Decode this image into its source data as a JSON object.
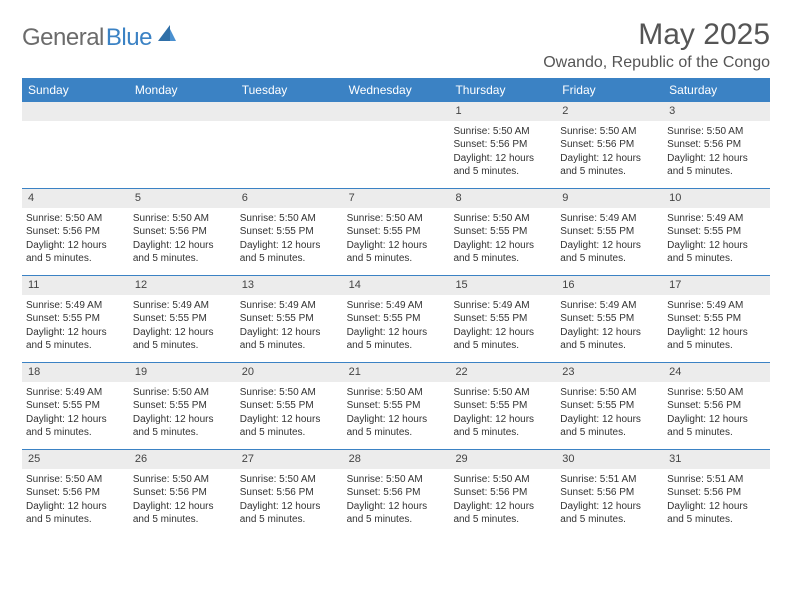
{
  "brand": {
    "part1": "General",
    "part2": "Blue"
  },
  "title": "May 2025",
  "location": "Owando, Republic of the Congo",
  "colors": {
    "header_bg": "#3b82c4",
    "daynum_bg": "#ececec",
    "text": "#333333",
    "brand_gray": "#6b6b6b",
    "brand_blue": "#3b82c4"
  },
  "day_names": [
    "Sunday",
    "Monday",
    "Tuesday",
    "Wednesday",
    "Thursday",
    "Friday",
    "Saturday"
  ],
  "weeks": [
    [
      {
        "empty": true
      },
      {
        "empty": true
      },
      {
        "empty": true
      },
      {
        "empty": true
      },
      {
        "day": "1",
        "sunrise": "Sunrise: 5:50 AM",
        "sunset": "Sunset: 5:56 PM",
        "daylight": "Daylight: 12 hours and 5 minutes."
      },
      {
        "day": "2",
        "sunrise": "Sunrise: 5:50 AM",
        "sunset": "Sunset: 5:56 PM",
        "daylight": "Daylight: 12 hours and 5 minutes."
      },
      {
        "day": "3",
        "sunrise": "Sunrise: 5:50 AM",
        "sunset": "Sunset: 5:56 PM",
        "daylight": "Daylight: 12 hours and 5 minutes."
      }
    ],
    [
      {
        "day": "4",
        "sunrise": "Sunrise: 5:50 AM",
        "sunset": "Sunset: 5:56 PM",
        "daylight": "Daylight: 12 hours and 5 minutes."
      },
      {
        "day": "5",
        "sunrise": "Sunrise: 5:50 AM",
        "sunset": "Sunset: 5:56 PM",
        "daylight": "Daylight: 12 hours and 5 minutes."
      },
      {
        "day": "6",
        "sunrise": "Sunrise: 5:50 AM",
        "sunset": "Sunset: 5:55 PM",
        "daylight": "Daylight: 12 hours and 5 minutes."
      },
      {
        "day": "7",
        "sunrise": "Sunrise: 5:50 AM",
        "sunset": "Sunset: 5:55 PM",
        "daylight": "Daylight: 12 hours and 5 minutes."
      },
      {
        "day": "8",
        "sunrise": "Sunrise: 5:50 AM",
        "sunset": "Sunset: 5:55 PM",
        "daylight": "Daylight: 12 hours and 5 minutes."
      },
      {
        "day": "9",
        "sunrise": "Sunrise: 5:49 AM",
        "sunset": "Sunset: 5:55 PM",
        "daylight": "Daylight: 12 hours and 5 minutes."
      },
      {
        "day": "10",
        "sunrise": "Sunrise: 5:49 AM",
        "sunset": "Sunset: 5:55 PM",
        "daylight": "Daylight: 12 hours and 5 minutes."
      }
    ],
    [
      {
        "day": "11",
        "sunrise": "Sunrise: 5:49 AM",
        "sunset": "Sunset: 5:55 PM",
        "daylight": "Daylight: 12 hours and 5 minutes."
      },
      {
        "day": "12",
        "sunrise": "Sunrise: 5:49 AM",
        "sunset": "Sunset: 5:55 PM",
        "daylight": "Daylight: 12 hours and 5 minutes."
      },
      {
        "day": "13",
        "sunrise": "Sunrise: 5:49 AM",
        "sunset": "Sunset: 5:55 PM",
        "daylight": "Daylight: 12 hours and 5 minutes."
      },
      {
        "day": "14",
        "sunrise": "Sunrise: 5:49 AM",
        "sunset": "Sunset: 5:55 PM",
        "daylight": "Daylight: 12 hours and 5 minutes."
      },
      {
        "day": "15",
        "sunrise": "Sunrise: 5:49 AM",
        "sunset": "Sunset: 5:55 PM",
        "daylight": "Daylight: 12 hours and 5 minutes."
      },
      {
        "day": "16",
        "sunrise": "Sunrise: 5:49 AM",
        "sunset": "Sunset: 5:55 PM",
        "daylight": "Daylight: 12 hours and 5 minutes."
      },
      {
        "day": "17",
        "sunrise": "Sunrise: 5:49 AM",
        "sunset": "Sunset: 5:55 PM",
        "daylight": "Daylight: 12 hours and 5 minutes."
      }
    ],
    [
      {
        "day": "18",
        "sunrise": "Sunrise: 5:49 AM",
        "sunset": "Sunset: 5:55 PM",
        "daylight": "Daylight: 12 hours and 5 minutes."
      },
      {
        "day": "19",
        "sunrise": "Sunrise: 5:50 AM",
        "sunset": "Sunset: 5:55 PM",
        "daylight": "Daylight: 12 hours and 5 minutes."
      },
      {
        "day": "20",
        "sunrise": "Sunrise: 5:50 AM",
        "sunset": "Sunset: 5:55 PM",
        "daylight": "Daylight: 12 hours and 5 minutes."
      },
      {
        "day": "21",
        "sunrise": "Sunrise: 5:50 AM",
        "sunset": "Sunset: 5:55 PM",
        "daylight": "Daylight: 12 hours and 5 minutes."
      },
      {
        "day": "22",
        "sunrise": "Sunrise: 5:50 AM",
        "sunset": "Sunset: 5:55 PM",
        "daylight": "Daylight: 12 hours and 5 minutes."
      },
      {
        "day": "23",
        "sunrise": "Sunrise: 5:50 AM",
        "sunset": "Sunset: 5:55 PM",
        "daylight": "Daylight: 12 hours and 5 minutes."
      },
      {
        "day": "24",
        "sunrise": "Sunrise: 5:50 AM",
        "sunset": "Sunset: 5:56 PM",
        "daylight": "Daylight: 12 hours and 5 minutes."
      }
    ],
    [
      {
        "day": "25",
        "sunrise": "Sunrise: 5:50 AM",
        "sunset": "Sunset: 5:56 PM",
        "daylight": "Daylight: 12 hours and 5 minutes."
      },
      {
        "day": "26",
        "sunrise": "Sunrise: 5:50 AM",
        "sunset": "Sunset: 5:56 PM",
        "daylight": "Daylight: 12 hours and 5 minutes."
      },
      {
        "day": "27",
        "sunrise": "Sunrise: 5:50 AM",
        "sunset": "Sunset: 5:56 PM",
        "daylight": "Daylight: 12 hours and 5 minutes."
      },
      {
        "day": "28",
        "sunrise": "Sunrise: 5:50 AM",
        "sunset": "Sunset: 5:56 PM",
        "daylight": "Daylight: 12 hours and 5 minutes."
      },
      {
        "day": "29",
        "sunrise": "Sunrise: 5:50 AM",
        "sunset": "Sunset: 5:56 PM",
        "daylight": "Daylight: 12 hours and 5 minutes."
      },
      {
        "day": "30",
        "sunrise": "Sunrise: 5:51 AM",
        "sunset": "Sunset: 5:56 PM",
        "daylight": "Daylight: 12 hours and 5 minutes."
      },
      {
        "day": "31",
        "sunrise": "Sunrise: 5:51 AM",
        "sunset": "Sunset: 5:56 PM",
        "daylight": "Daylight: 12 hours and 5 minutes."
      }
    ]
  ]
}
